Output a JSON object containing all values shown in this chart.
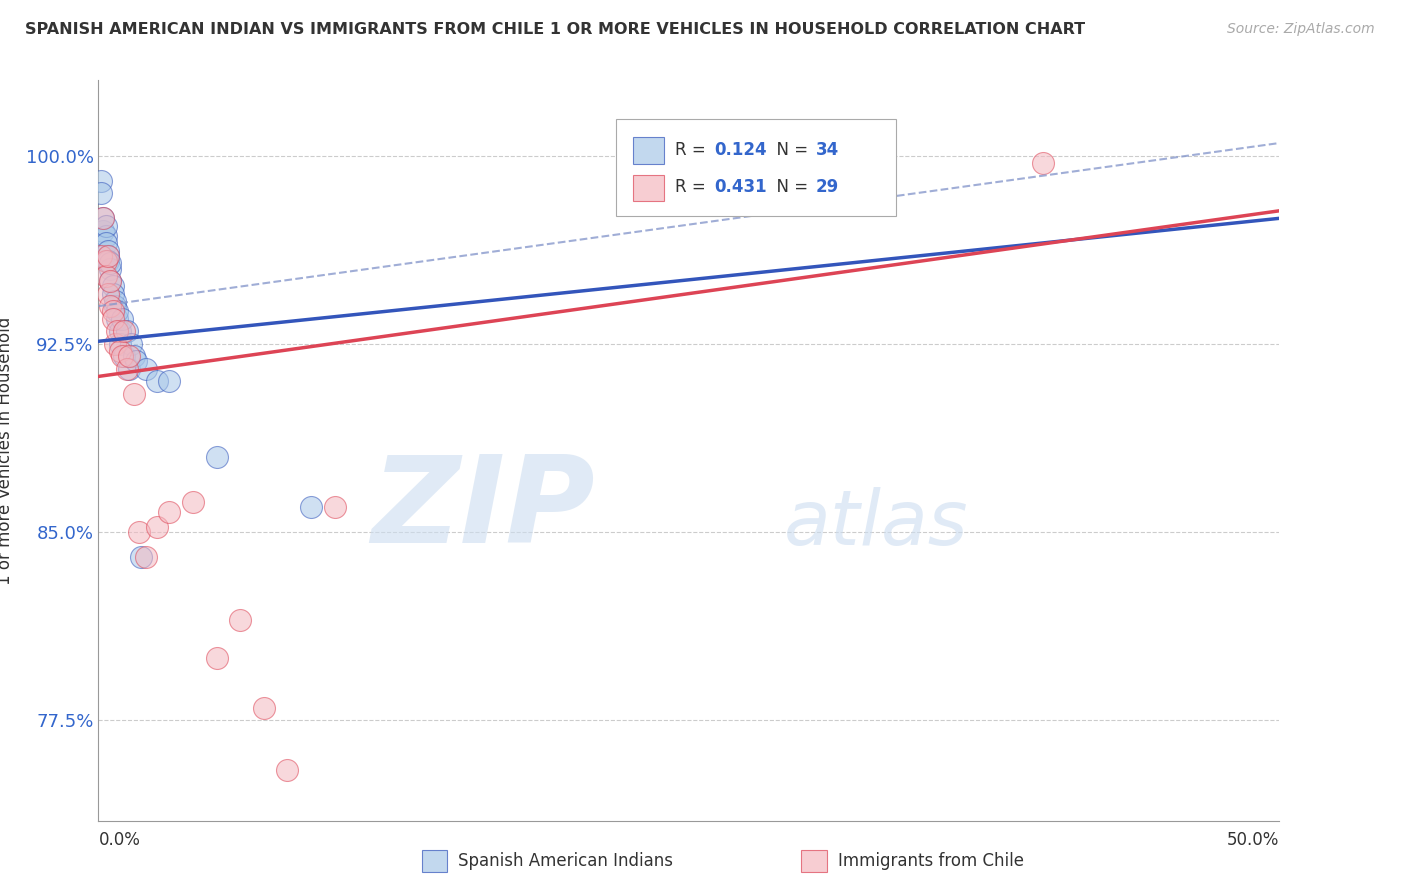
{
  "title": "SPANISH AMERICAN INDIAN VS IMMIGRANTS FROM CHILE 1 OR MORE VEHICLES IN HOUSEHOLD CORRELATION CHART",
  "source": "Source: ZipAtlas.com",
  "ylabel": "1 or more Vehicles in Household",
  "ytick_labels": [
    "77.5%",
    "85.0%",
    "92.5%",
    "100.0%"
  ],
  "ytick_values": [
    0.775,
    0.85,
    0.925,
    1.0
  ],
  "xmin": 0.0,
  "xmax": 0.5,
  "ymin": 0.735,
  "ymax": 1.03,
  "legend_r1": "R = 0.124",
  "legend_n1": "N = 34",
  "legend_r2": "R = 0.431",
  "legend_n2": "N = 29",
  "color_blue": "#a8c8e8",
  "color_pink": "#f4b8c0",
  "line_blue": "#3355bb",
  "line_pink": "#dd4455",
  "dashed_color": "#8899cc",
  "watermark_zip": "ZIP",
  "watermark_atlas": "atlas",
  "blue_x": [
    0.001,
    0.001,
    0.002,
    0.002,
    0.003,
    0.003,
    0.003,
    0.004,
    0.004,
    0.004,
    0.005,
    0.005,
    0.005,
    0.006,
    0.006,
    0.007,
    0.007,
    0.008,
    0.008,
    0.009,
    0.009,
    0.01,
    0.011,
    0.012,
    0.013,
    0.014,
    0.015,
    0.016,
    0.018,
    0.02,
    0.025,
    0.03,
    0.05,
    0.09
  ],
  "blue_y": [
    0.99,
    0.985,
    0.97,
    0.975,
    0.968,
    0.972,
    0.965,
    0.96,
    0.962,
    0.958,
    0.955,
    0.95,
    0.957,
    0.948,
    0.945,
    0.94,
    0.942,
    0.935,
    0.938,
    0.93,
    0.925,
    0.935,
    0.92,
    0.93,
    0.915,
    0.925,
    0.92,
    0.918,
    0.84,
    0.915,
    0.91,
    0.91,
    0.88,
    0.86
  ],
  "pink_x": [
    0.001,
    0.002,
    0.003,
    0.003,
    0.004,
    0.004,
    0.005,
    0.005,
    0.006,
    0.006,
    0.007,
    0.008,
    0.009,
    0.01,
    0.011,
    0.012,
    0.013,
    0.015,
    0.017,
    0.02,
    0.025,
    0.03,
    0.04,
    0.05,
    0.06,
    0.07,
    0.08,
    0.1,
    0.4
  ],
  "pink_y": [
    0.96,
    0.975,
    0.958,
    0.952,
    0.96,
    0.945,
    0.95,
    0.94,
    0.938,
    0.935,
    0.925,
    0.93,
    0.922,
    0.92,
    0.93,
    0.915,
    0.92,
    0.905,
    0.85,
    0.84,
    0.852,
    0.858,
    0.862,
    0.8,
    0.815,
    0.78,
    0.755,
    0.86,
    0.997
  ]
}
